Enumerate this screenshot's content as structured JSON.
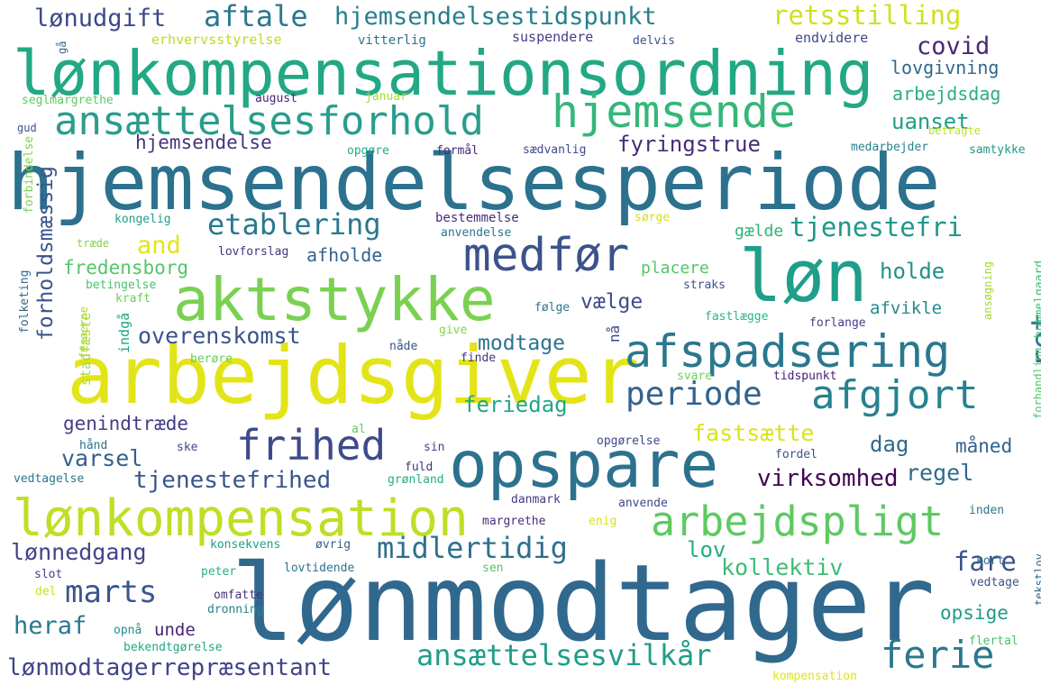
{
  "words": [
    {
      "text": "hjemsendelsesperiode",
      "color": "#2c728e"
    },
    {
      "text": "lønmodtager",
      "color": "#31688e"
    },
    {
      "text": "arbejdsgiver",
      "color": "#e3e418"
    },
    {
      "text": "lønkompensationsordning",
      "color": "#22a884"
    },
    {
      "text": "opspare",
      "color": "#2c728e"
    },
    {
      "text": "aktstykke",
      "color": "#7ad151"
    },
    {
      "text": "løn",
      "color": "#1f9e89"
    },
    {
      "text": "lønkompensation",
      "color": "#bddf26"
    },
    {
      "text": "afspadsering",
      "color": "#2a788e"
    },
    {
      "text": "ansættelsesforhold",
      "color": "#2a9d8c"
    },
    {
      "text": "hjemsende",
      "color": "#35b779"
    },
    {
      "text": "medfør",
      "color": "#3b528b"
    },
    {
      "text": "frihed",
      "color": "#3e4a89"
    },
    {
      "text": "arbejdspligt",
      "color": "#5ec962"
    },
    {
      "text": "periode",
      "color": "#33638d"
    },
    {
      "text": "afgjort",
      "color": "#26828e"
    },
    {
      "text": "etablering",
      "color": "#2a788e"
    },
    {
      "text": "marts",
      "color": "#39568c"
    },
    {
      "text": "midlertidig",
      "color": "#2d708e"
    },
    {
      "text": "ansættelsesvilkår",
      "color": "#1f9e89"
    },
    {
      "text": "ferie",
      "color": "#2a788e"
    },
    {
      "text": "lønmodtagerrepræsentant",
      "color": "#414487"
    },
    {
      "text": "aftale",
      "color": "#2a788e"
    },
    {
      "text": "hjemsendelsestidspunkt",
      "color": "#27808e"
    },
    {
      "text": "retsstilling",
      "color": "#d0e11c"
    },
    {
      "text": "lønudgift",
      "color": "#3e4989"
    },
    {
      "text": "covid",
      "color": "#482878"
    },
    {
      "text": "lovgivning",
      "color": "#31688e"
    },
    {
      "text": "arbejdsdag",
      "color": "#29af7f"
    },
    {
      "text": "uanset",
      "color": "#1fa088"
    },
    {
      "text": "fyringstrue",
      "color": "#472d7b"
    },
    {
      "text": "hjemsendelse",
      "color": "#46337e"
    },
    {
      "text": "tjenestefri",
      "color": "#1f988b"
    },
    {
      "text": "and",
      "color": "#e5e419"
    },
    {
      "text": "forholdsmæssig",
      "color": "#3a548c"
    },
    {
      "text": "fredensborg",
      "color": "#54c568"
    },
    {
      "text": "afholde",
      "color": "#33638d"
    },
    {
      "text": "gælde",
      "color": "#2eb37c"
    },
    {
      "text": "holde",
      "color": "#21918c"
    },
    {
      "text": "placere",
      "color": "#52c569"
    },
    {
      "text": "vælge",
      "color": "#3e4c8a"
    },
    {
      "text": "overenskomst",
      "color": "#3b528b"
    },
    {
      "text": "modtage",
      "color": "#2c738e"
    },
    {
      "text": "ret",
      "color": "#2a768e"
    },
    {
      "text": "afvikle",
      "color": "#238a8d"
    },
    {
      "text": "genindtræde",
      "color": "#433e85"
    },
    {
      "text": "feriedag",
      "color": "#22a785"
    },
    {
      "text": "fastsætte",
      "color": "#dae319"
    },
    {
      "text": "dag",
      "color": "#31688e"
    },
    {
      "text": "måned",
      "color": "#33638d"
    },
    {
      "text": "varsel",
      "color": "#355f8d"
    },
    {
      "text": "tjenestefrihed",
      "color": "#39568c"
    },
    {
      "text": "virksomhed",
      "color": "#440154"
    },
    {
      "text": "regel",
      "color": "#306a8e"
    },
    {
      "text": "lønnedgang",
      "color": "#414487"
    },
    {
      "text": "lov",
      "color": "#26ad81"
    },
    {
      "text": "kollektiv",
      "color": "#3dbc74"
    },
    {
      "text": "fare",
      "color": "#3b528b"
    },
    {
      "text": "heraf",
      "color": "#2a788e"
    },
    {
      "text": "unde",
      "color": "#482475"
    },
    {
      "text": "opsige",
      "color": "#1f9a8a"
    },
    {
      "text": "erhvervsstyrelse",
      "color": "#b8de29"
    },
    {
      "text": "vitterlig",
      "color": "#2c728e"
    },
    {
      "text": "suspendere",
      "color": "#433e85"
    },
    {
      "text": "delvis",
      "color": "#3b528b"
    },
    {
      "text": "endvidere",
      "color": "#3e4989"
    },
    {
      "text": "gå",
      "color": "#31688e"
    },
    {
      "text": "seglmargrethe",
      "color": "#5ec962"
    },
    {
      "text": "august",
      "color": "#482878"
    },
    {
      "text": "januar",
      "color": "#a5db36"
    },
    {
      "text": "gud",
      "color": "#3b528b"
    },
    {
      "text": "opgøre",
      "color": "#25ab82"
    },
    {
      "text": "formål",
      "color": "#482878"
    },
    {
      "text": "sædvanlig",
      "color": "#3e4c8a"
    },
    {
      "text": "betragte",
      "color": "#c2df23"
    },
    {
      "text": "medarbejder",
      "color": "#26828e"
    },
    {
      "text": "samtykke",
      "color": "#1f988b"
    },
    {
      "text": "forbindelse",
      "color": "#7ad151"
    },
    {
      "text": "kongelig",
      "color": "#1fa088"
    },
    {
      "text": "bestemmelse",
      "color": "#472c7a"
    },
    {
      "text": "sørge",
      "color": "#d8e219"
    },
    {
      "text": "anvendelse",
      "color": "#2c728e"
    },
    {
      "text": "træde",
      "color": "#7fd34e"
    },
    {
      "text": "lovforslag",
      "color": "#46337e"
    },
    {
      "text": "straks",
      "color": "#3b528b"
    },
    {
      "text": "ansøgning",
      "color": "#a2da37"
    },
    {
      "text": "hummelgaard",
      "color": "#3dbc74"
    },
    {
      "text": "folketing",
      "color": "#31688e"
    },
    {
      "text": "stadfæste",
      "color": "#a8db34"
    },
    {
      "text": "indgå",
      "color": "#21a685"
    },
    {
      "text": "betingelse",
      "color": "#4ac16d"
    },
    {
      "text": "kraft",
      "color": "#6ece58"
    },
    {
      "text": "følge",
      "color": "#2a788e"
    },
    {
      "text": "fastlægge",
      "color": "#2fb47c"
    },
    {
      "text": "forlange",
      "color": "#433e85"
    },
    {
      "text": "færøerne",
      "color": "#addc30"
    },
    {
      "text": "nå",
      "color": "#3e4a89"
    },
    {
      "text": "give",
      "color": "#84d44b"
    },
    {
      "text": "nåde",
      "color": "#3b528b"
    },
    {
      "text": "finde",
      "color": "#46337e"
    },
    {
      "text": "berøre",
      "color": "#6ccd5a"
    },
    {
      "text": "svare",
      "color": "#70cf57"
    },
    {
      "text": "tidspunkt",
      "color": "#482475"
    },
    {
      "text": "forhandling",
      "color": "#50c46a"
    },
    {
      "text": "al",
      "color": "#5ec962"
    },
    {
      "text": "hånd",
      "color": "#2c728e"
    },
    {
      "text": "ske",
      "color": "#3e4989"
    },
    {
      "text": "sin",
      "color": "#3e4989"
    },
    {
      "text": "opgørelse",
      "color": "#3e4989"
    },
    {
      "text": "fordel",
      "color": "#3b528b"
    },
    {
      "text": "fuld",
      "color": "#46337e"
    },
    {
      "text": "grønland",
      "color": "#26ad81"
    },
    {
      "text": "vedtagelse",
      "color": "#2a788e"
    },
    {
      "text": "danmark",
      "color": "#443a83"
    },
    {
      "text": "anvende",
      "color": "#3e4989"
    },
    {
      "text": "inden",
      "color": "#2a788e"
    },
    {
      "text": "margrethe",
      "color": "#472d7b"
    },
    {
      "text": "enig",
      "color": "#d8e219"
    },
    {
      "text": "kort",
      "color": "#2c738e"
    },
    {
      "text": "konsekvens",
      "color": "#1fa088"
    },
    {
      "text": "øvrig",
      "color": "#33638d"
    },
    {
      "text": "slot",
      "color": "#414487"
    },
    {
      "text": "sen",
      "color": "#52c569"
    },
    {
      "text": "peter",
      "color": "#29af7f"
    },
    {
      "text": "lovtidende",
      "color": "#2c728e"
    },
    {
      "text": "del",
      "color": "#c8e020"
    },
    {
      "text": "omfatte",
      "color": "#46337e"
    },
    {
      "text": "dronning",
      "color": "#25838e"
    },
    {
      "text": "vedtage",
      "color": "#3b528b"
    },
    {
      "text": "tekstlov",
      "color": "#31688e"
    },
    {
      "text": "opnå",
      "color": "#228d8d"
    },
    {
      "text": "bekendtgørelse",
      "color": "#22a884"
    },
    {
      "text": "flertal",
      "color": "#4ac16d"
    },
    {
      "text": "kompensation",
      "color": "#dde318"
    }
  ]
}
